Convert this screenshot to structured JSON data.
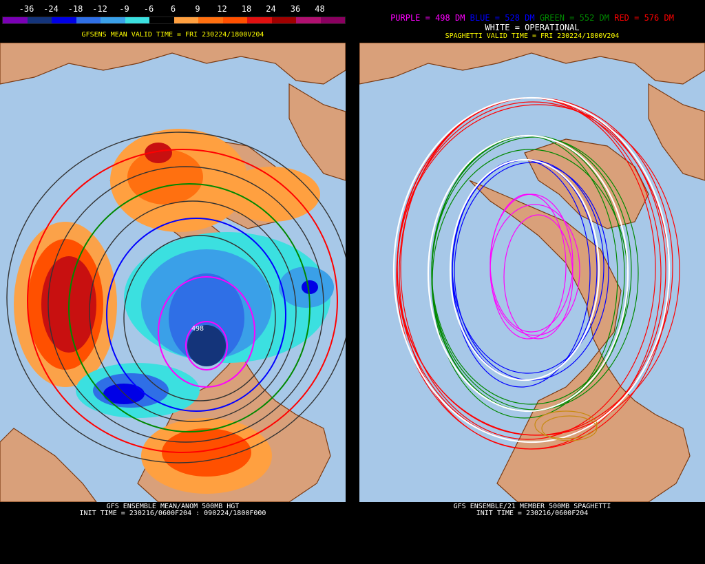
{
  "left_panel": {
    "scale_labels": [
      "-36",
      "-24",
      "-18",
      "-12",
      "-9",
      "-6",
      "6",
      "9",
      "12",
      "18",
      "24",
      "36",
      "48"
    ],
    "scale_colors": [
      "#7a00b5",
      "#14347a",
      "#0000e6",
      "#2f6fe6",
      "#3aa0e8",
      "#3be0e0",
      "#000000",
      "#ffa040",
      "#ff7010",
      "#ff5000",
      "#e01010",
      "#a00000",
      "#b01070",
      "#8a0060"
    ],
    "valid_line": "GFSENS MEAN VALID TIME = FRI 230224/1800V204",
    "footer_line1": "GFS ENSEMBLE MEAN/ANOM 500MB HGT",
    "footer_line2": "INIT TIME = 230216/0600F204 : 090224/1800F000",
    "contour_label": "498"
  },
  "right_panel": {
    "legend_purple": "PURPLE = 498 DM",
    "legend_blue": "BLUE = 528 DM",
    "legend_green": "GREEN = 552 DM",
    "legend_red": "RED = 576 DM",
    "legend_white": "WHITE = OPERATIONAL",
    "valid_line": "SPAGHETTI VALID TIME = FRI 230224/1800V204",
    "footer_line1": "GFS ENSEMBLE/21 MEMBER 500MB SPAGHETTI",
    "footer_line2": "INIT TIME = 230216/0600F204"
  },
  "colors": {
    "ocean": "#a7c8e8",
    "land": "#d9a07a",
    "coast": "#7a3a12",
    "purple_contour": "#ff00ff",
    "blue_contour": "#0000ff",
    "green_contour": "#008800",
    "red_contour": "#ff0000",
    "white_contour": "#ffffff"
  }
}
